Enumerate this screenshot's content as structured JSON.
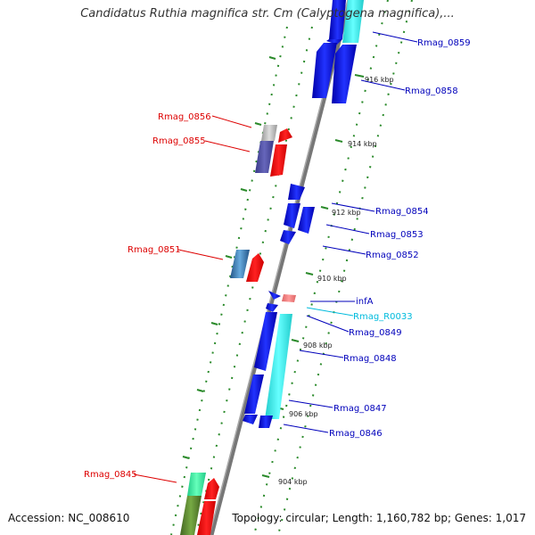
{
  "title": "Candidatus Ruthia magnifica str. Cm (Calyptogena magnifica),...",
  "footer": {
    "accession": "Accession: NC_008610",
    "summary": "Topology: circular; Length: 1,160,782 bp; Genes: 1,017"
  },
  "colors": {
    "forward_label": "#dd0000",
    "reverse_label": "#0000bb",
    "rna_label": "#00bbdd",
    "backbone": "#808080",
    "dots": "#2a8a2a"
  },
  "scale_labels": [
    {
      "kbp": 916,
      "text": "916 kbp"
    },
    {
      "kbp": 914,
      "text": "914 kbp"
    },
    {
      "kbp": 912,
      "text": "912 kbp"
    },
    {
      "kbp": 910,
      "text": "910 kbp"
    },
    {
      "kbp": 908,
      "text": "908 kbp"
    },
    {
      "kbp": 906,
      "text": "906 kbp"
    },
    {
      "kbp": 904,
      "text": "904 kbp"
    }
  ],
  "genes": [
    {
      "name": "Rmag_0859",
      "strand": "reverse",
      "color": "blue"
    },
    {
      "name": "Rmag_0858",
      "strand": "reverse",
      "color": "blue"
    },
    {
      "name": "Rmag_0856",
      "strand": "forward",
      "color": "red"
    },
    {
      "name": "Rmag_0855",
      "strand": "forward",
      "color": "red"
    },
    {
      "name": "Rmag_0854",
      "strand": "reverse",
      "color": "blue"
    },
    {
      "name": "Rmag_0853",
      "strand": "reverse",
      "color": "blue"
    },
    {
      "name": "Rmag_0852",
      "strand": "reverse",
      "color": "blue"
    },
    {
      "name": "Rmag_0851",
      "strand": "forward",
      "color": "red"
    },
    {
      "name": "infA",
      "strand": "reverse",
      "color": "blue"
    },
    {
      "name": "Rmag_R0033",
      "strand": "reverse",
      "color": "cyan"
    },
    {
      "name": "Rmag_0849",
      "strand": "reverse",
      "color": "blue"
    },
    {
      "name": "Rmag_0848",
      "strand": "reverse",
      "color": "blue"
    },
    {
      "name": "Rmag_0847",
      "strand": "reverse",
      "color": "blue"
    },
    {
      "name": "Rmag_0846",
      "strand": "reverse",
      "color": "blue"
    },
    {
      "name": "Rmag_0845",
      "strand": "forward",
      "color": "red"
    }
  ]
}
